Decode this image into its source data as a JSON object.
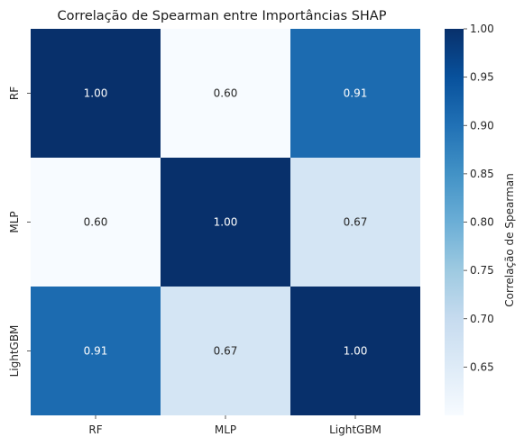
{
  "chart_data": {
    "type": "heatmap",
    "title": "Correlação de Spearman entre Importâncias SHAP",
    "x_categories": [
      "RF",
      "MLP",
      "LightGBM"
    ],
    "y_categories": [
      "RF",
      "MLP",
      "LightGBM"
    ],
    "values": [
      [
        1.0,
        0.6,
        0.91
      ],
      [
        0.6,
        1.0,
        0.67
      ],
      [
        0.91,
        0.67,
        1.0
      ]
    ],
    "cell_labels": [
      [
        "1.00",
        "0.60",
        "0.91"
      ],
      [
        "0.60",
        "1.00",
        "0.67"
      ],
      [
        "0.91",
        "0.67",
        "1.00"
      ]
    ],
    "colorbar": {
      "label": "Correlação de Spearman",
      "range": [
        0.6,
        1.0
      ],
      "ticks": [
        "0.65",
        "0.70",
        "0.75",
        "0.80",
        "0.85",
        "0.90",
        "0.95",
        "1.00"
      ],
      "tick_values": [
        0.65,
        0.7,
        0.75,
        0.8,
        0.85,
        0.9,
        0.95,
        1.0
      ],
      "colormap": "Blues"
    },
    "colors": {
      "min": "#f7fbff",
      "max": "#08306b",
      "dark_text": "#262626",
      "light_text": "#ffffff"
    }
  }
}
